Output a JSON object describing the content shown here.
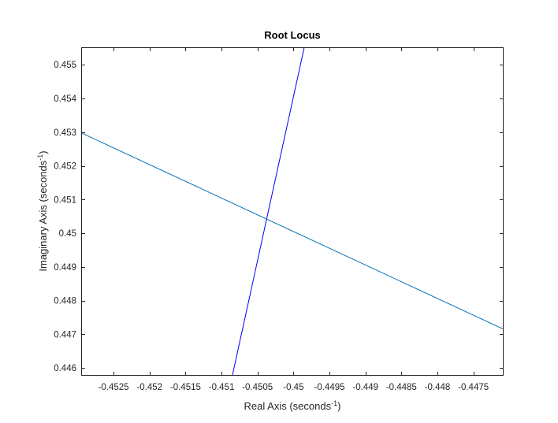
{
  "chart_data": {
    "type": "line",
    "title": "Root Locus",
    "xlabel": "Real Axis (seconds",
    "xlabel_sup": "-1",
    "xlabel_end": ")",
    "ylabel": "Imaginary Axis (seconds",
    "ylabel_sup": "-1",
    "ylabel_end": ")",
    "xlim": [
      -0.45295,
      -0.44708
    ],
    "ylim": [
      0.44577,
      0.45552
    ],
    "grid": false,
    "xticks": [
      -0.4525,
      -0.452,
      -0.4515,
      -0.451,
      -0.4505,
      -0.45,
      -0.4495,
      -0.449,
      -0.4485,
      -0.448,
      -0.4475
    ],
    "xtick_labels": [
      "-0.4525",
      "-0.452",
      "-0.4515",
      "-0.451",
      "-0.4505",
      "-0.45",
      "-0.4495",
      "-0.449",
      "-0.4485",
      "-0.448",
      "-0.4475"
    ],
    "yticks": [
      0.446,
      0.447,
      0.448,
      0.449,
      0.45,
      0.451,
      0.452,
      0.453,
      0.454,
      0.455
    ],
    "ytick_labels": [
      "0.446",
      "0.447",
      "0.448",
      "0.449",
      "0.45",
      "0.451",
      "0.452",
      "0.453",
      "0.454",
      "0.455"
    ],
    "series": [
      {
        "color": "#0000ff",
        "x": [
          -0.45085,
          -0.44985
        ],
        "y": [
          0.44577,
          0.45552
        ]
      },
      {
        "color": "#0072bd",
        "x": [
          -0.45295,
          -0.44708
        ],
        "y": [
          0.45298,
          0.44715
        ]
      }
    ]
  }
}
